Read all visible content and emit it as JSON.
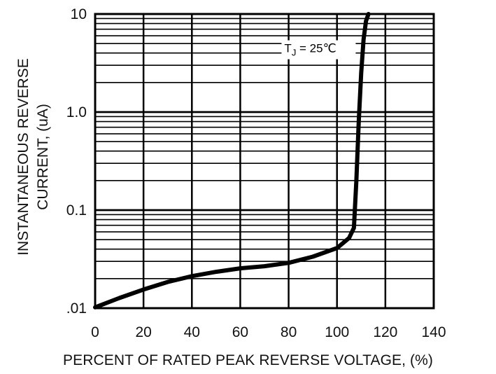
{
  "chart_data": {
    "type": "line",
    "xlabel": "PERCENT OF RATED PEAK REVERSE VOLTAGE, (%)",
    "ylabel_line1": "INSTANTANEOUS REVERSE",
    "ylabel_line2": "CURRENT, (uA)",
    "xlim": [
      0,
      140
    ],
    "ylim": [
      0.01,
      10
    ],
    "yscale": "log",
    "grid": true,
    "x_ticks": [
      0,
      20,
      40,
      60,
      80,
      100,
      120,
      140
    ],
    "x_tick_labels": [
      "0",
      "20",
      "40",
      "60",
      "80",
      "100",
      "120",
      "140"
    ],
    "y_ticks": [
      0.01,
      0.1,
      1.0,
      10
    ],
    "y_tick_labels": [
      ".01",
      "0.1",
      "1.0",
      "10"
    ],
    "annotation": {
      "base": "T",
      "sub": "J",
      "rest": " = 25℃",
      "x": 95,
      "y": 4.5
    },
    "series": [
      {
        "x": [
          0,
          10,
          20,
          30,
          40,
          50,
          60,
          70,
          80,
          90,
          100,
          105,
          107,
          108,
          109,
          110,
          111,
          112,
          113
        ],
        "y": [
          0.0102,
          0.0127,
          0.0155,
          0.0185,
          0.0212,
          0.0235,
          0.0255,
          0.0268,
          0.029,
          0.0335,
          0.041,
          0.052,
          0.066,
          0.2,
          0.8,
          2.5,
          5.5,
          8.5,
          10
        ]
      }
    ]
  }
}
